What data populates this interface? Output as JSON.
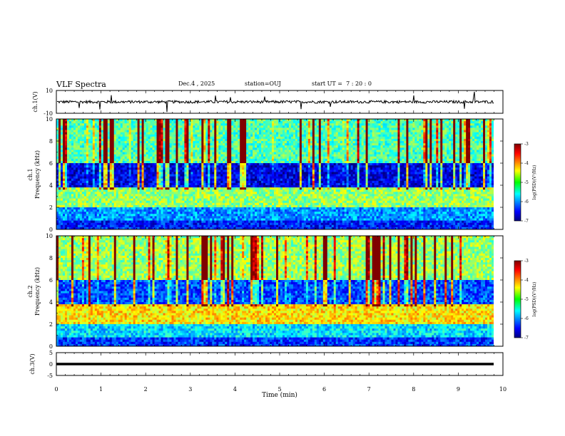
{
  "header": {
    "title": "VLF Spectra",
    "date": "Dec.4 , 2025",
    "station": "station=OUJ",
    "start": "start UT =  7 : 20 : 0"
  },
  "chart_data": [
    {
      "type": "line",
      "panel": "waveform-ch1",
      "ylabel": "ch.1(V)",
      "ylim": [
        -10,
        10
      ],
      "yticks": [
        "10",
        "-10"
      ],
      "xlim": [
        0,
        10
      ],
      "baseline": 0,
      "description_of_values": "noisy signal near 0 V with sparse spikes"
    },
    {
      "type": "heatmap",
      "panel": "spectrogram-ch1",
      "ylabel": "ch.1\nFrequency (kHz)",
      "ylim": [
        0,
        10
      ],
      "yticks": [
        "0",
        "2",
        "4",
        "6",
        "8",
        "10"
      ],
      "xlim": [
        0,
        10
      ],
      "colorbar": {
        "label": "log(PSD)(V²/Hz)",
        "ticks": [
          "-3",
          "-4",
          "-5",
          "-6",
          "-7"
        ],
        "range": [
          -7,
          -3
        ]
      },
      "bands_khz": [
        {
          "from": 0,
          "to": 0.8,
          "level": -6.4
        },
        {
          "from": 0.8,
          "to": 2.0,
          "level": -5.9
        },
        {
          "from": 2.0,
          "to": 3.8,
          "level": -4.9
        },
        {
          "from": 3.8,
          "to": 6.0,
          "level": -6.6
        },
        {
          "from": 6.0,
          "to": 10,
          "level": -5.2
        }
      ]
    },
    {
      "type": "heatmap",
      "panel": "spectrogram-ch2",
      "ylabel": "ch.2\nFrequency (kHz)",
      "ylim": [
        0,
        10
      ],
      "yticks": [
        "0",
        "2",
        "4",
        "6",
        "8",
        "10"
      ],
      "xlim": [
        0,
        10
      ],
      "colorbar": {
        "label": "log(PSD)(V²/Hz)",
        "ticks": [
          "-3",
          "-4",
          "-5",
          "-6",
          "-7"
        ],
        "range": [
          -7,
          -3
        ]
      },
      "bands_khz": [
        {
          "from": 0,
          "to": 0.8,
          "level": -6.3
        },
        {
          "from": 0.8,
          "to": 2.0,
          "level": -5.6
        },
        {
          "from": 2.0,
          "to": 3.8,
          "level": -4.4
        },
        {
          "from": 3.8,
          "to": 6.0,
          "level": -6.2
        },
        {
          "from": 6.0,
          "to": 10,
          "level": -4.9
        }
      ]
    },
    {
      "type": "line",
      "panel": "waveform-ch3",
      "ylabel": "ch.3(V)",
      "ylim": [
        -5,
        5
      ],
      "yticks": [
        "5",
        "0",
        "-5"
      ],
      "xlim": [
        0,
        10
      ],
      "baseline": 0
    }
  ],
  "xaxis": {
    "label": "Time (min)",
    "ticks": [
      "0",
      "1",
      "2",
      "3",
      "4",
      "5",
      "6",
      "7",
      "8",
      "9",
      "10"
    ]
  },
  "colors": {
    "jet_low": "#00007f",
    "jet_high": "#7f0000",
    "frame": "#000000"
  }
}
